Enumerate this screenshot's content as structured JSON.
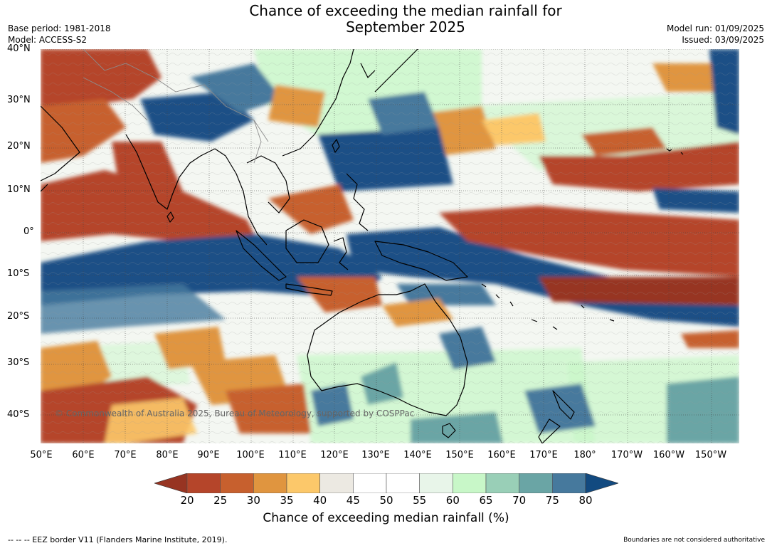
{
  "title_line1": "Chance of exceeding the median rainfall for",
  "title_line2": "September 2025",
  "base_period": "Base period: 1981-2018",
  "model": "Model: ACCESS-S2",
  "model_run": "Model run: 01/09/2025",
  "issued": "Issued: 03/09/2025",
  "lat_labels": [
    "40°N",
    "30°N",
    "20°N",
    "10°N",
    "0°",
    "10°S",
    "20°S",
    "30°S",
    "40°S"
  ],
  "lon_labels": [
    "50°E",
    "60°E",
    "70°E",
    "80°E",
    "90°E",
    "100°E",
    "110°E",
    "120°E",
    "130°E",
    "140°E",
    "150°E",
    "160°E",
    "170°E",
    "180°",
    "170°W",
    "160°W",
    "150°W"
  ],
  "copyright": "© Commonwealth of Australia 2025, Bureau of Meteorology, supported by COSPPac",
  "colorbar": {
    "ticks": [
      "20",
      "25",
      "30",
      "35",
      "40",
      "45",
      "50",
      "55",
      "60",
      "65",
      "70",
      "75",
      "80"
    ],
    "colors": [
      "#b5452a",
      "#c7602e",
      "#e0953f",
      "#fcc86a",
      "#ece9e2",
      "#ffffff",
      "#ffffff",
      "#e8f5e9",
      "#c8f7c8",
      "#99cfb7",
      "#6aa5a5",
      "#46799d",
      "#1a4f86"
    ],
    "under_color": "#973422",
    "over_color": "#124a80",
    "label": "Chance of exceeding median rainfall (%)"
  },
  "footer_left": "--  --  -- EEZ border V11 (Flanders Marine Institute, 2019).",
  "footer_right": "Boundaries are not considered authoritative"
}
